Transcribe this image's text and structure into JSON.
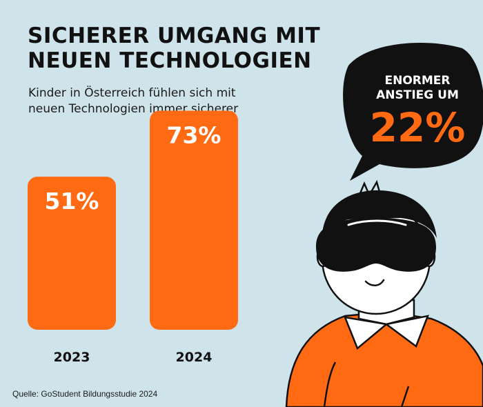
{
  "header": {
    "title_line1": "SICHERER UMGANG MIT",
    "title_line2": "NEUEN TECHNOLOGIEN",
    "subtitle_line1": "Kinder in Österreich fühlen sich mit",
    "subtitle_line2": "neuen Technologien immer sicherer"
  },
  "callout": {
    "line1": "ENORMER",
    "line2": "ANSTIEG UM",
    "value": "22%"
  },
  "source": "Quelle: GoStudent Bildungsstudie 2024",
  "colors": {
    "background": "#cfe3ea",
    "bar": "#ff6a13",
    "bubble": "#111111",
    "accent": "#ff6a13"
  },
  "chart_data": {
    "type": "bar",
    "categories": [
      "2023",
      "2024"
    ],
    "values": [
      51,
      73
    ],
    "value_labels": [
      "51%",
      "73%"
    ],
    "ylim": [
      0,
      100
    ]
  }
}
